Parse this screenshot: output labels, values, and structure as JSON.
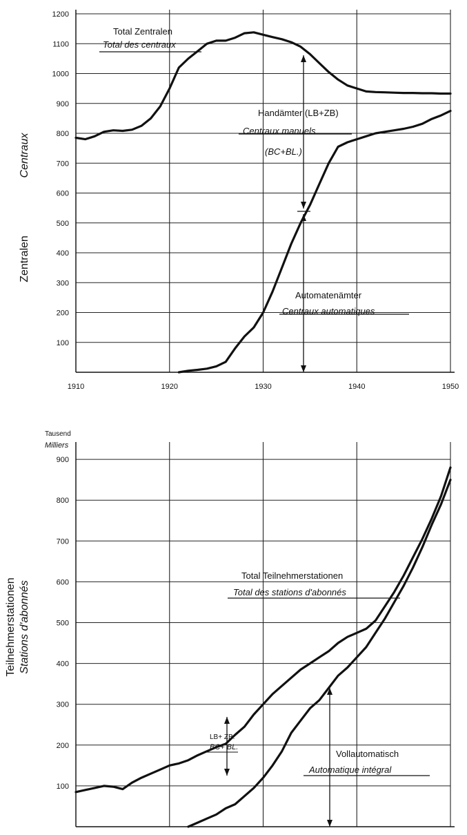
{
  "chart_data": [
    {
      "type": "line",
      "ylabel": "Zentralen",
      "ylabel_fr": "Centraux",
      "x_ticks": [
        "1910",
        "1920",
        "1930",
        "1940",
        "1950"
      ],
      "y_ticks": [
        "100",
        "200",
        "300",
        "400",
        "500",
        "600",
        "700",
        "800",
        "900",
        "1000",
        "1100",
        "1200"
      ],
      "xlim": [
        1910,
        1950
      ],
      "ylim": [
        0,
        1200
      ],
      "grid": true,
      "annotations": {
        "total_de": "Total Zentralen",
        "total_fr": "Total des centraux",
        "manual_de": "Handämter (LB+ZB)",
        "manual_fr1": "Centraux manuels",
        "manual_fr2": "(BC+BL.)",
        "auto_de": "Automatenämter",
        "auto_fr": "Centraux automatiques"
      },
      "series": [
        {
          "x": [
            1910,
            1911,
            1912,
            1913,
            1914,
            1915,
            1916,
            1917,
            1918,
            1919,
            1920,
            1921,
            1922,
            1923,
            1924,
            1925,
            1926,
            1927,
            1928,
            1929,
            1930,
            1931,
            1932,
            1933,
            1934,
            1935,
            1936,
            1937,
            1938,
            1939,
            1940,
            1941,
            1942,
            1943,
            1944,
            1945,
            1946,
            1947,
            1948,
            1949,
            1950
          ],
          "y": [
            785,
            780,
            790,
            805,
            810,
            808,
            812,
            825,
            850,
            890,
            950,
            1020,
            1050,
            1075,
            1100,
            1110,
            1110,
            1120,
            1135,
            1138,
            1130,
            1122,
            1115,
            1105,
            1090,
            1065,
            1035,
            1005,
            980,
            960,
            950,
            940,
            938,
            937,
            936,
            935,
            935,
            934,
            934,
            933,
            933
          ]
        },
        {
          "x": [
            1921,
            1922,
            1923,
            1924,
            1925,
            1926,
            1927,
            1928,
            1929,
            1930,
            1931,
            1932,
            1933,
            1934,
            1935,
            1936,
            1937,
            1938,
            1939,
            1940,
            1941,
            1942,
            1943,
            1944,
            1945,
            1946,
            1947,
            1948,
            1949,
            1950
          ],
          "y": [
            0,
            5,
            8,
            12,
            20,
            35,
            80,
            120,
            150,
            200,
            270,
            350,
            430,
            500,
            560,
            630,
            700,
            755,
            770,
            780,
            790,
            800,
            805,
            810,
            815,
            822,
            832,
            848,
            860,
            875
          ]
        }
      ]
    },
    {
      "type": "line",
      "ylabel": "Teilnehmerstationen",
      "ylabel_fr": "Stations d'abonnés",
      "unit_de": "Tausend",
      "unit_fr": "Milliers",
      "x_ticks": [
        "1910",
        "1920",
        "1930",
        "1940",
        "1950"
      ],
      "y_ticks": [
        "100",
        "200",
        "300",
        "400",
        "500",
        "600",
        "700",
        "800",
        "900"
      ],
      "xlim": [
        1910,
        1950
      ],
      "ylim": [
        0,
        1000
      ],
      "grid": true,
      "annotations": {
        "total_de": "Total Teilnehmerstationen",
        "total_fr": "Total des stations d'abonnés",
        "manual_de": "LB+ ZB.",
        "manual_fr": "BC+ BL.",
        "auto_de": "Vollautomatisch",
        "auto_fr": "Automatique intégral"
      },
      "series": [
        {
          "x": [
            1910,
            1911,
            1912,
            1913,
            1914,
            1915,
            1916,
            1917,
            1918,
            1919,
            1920,
            1921,
            1922,
            1923,
            1924,
            1925,
            1926,
            1927,
            1928,
            1929,
            1930,
            1931,
            1932,
            1933,
            1934,
            1935,
            1936,
            1937,
            1938,
            1939,
            1940,
            1941,
            1942,
            1943,
            1944,
            1945,
            1946,
            1947,
            1948,
            1949,
            1950
          ],
          "y": [
            85,
            90,
            95,
            100,
            98,
            92,
            108,
            120,
            130,
            140,
            150,
            155,
            163,
            175,
            185,
            195,
            203,
            225,
            245,
            275,
            300,
            325,
            345,
            365,
            385,
            400,
            415,
            430,
            450,
            465,
            475,
            485,
            505,
            540,
            575,
            615,
            660,
            705,
            755,
            810,
            880
          ]
        },
        {
          "x": [
            1922,
            1923,
            1924,
            1925,
            1926,
            1927,
            1928,
            1929,
            1930,
            1931,
            1932,
            1933,
            1934,
            1935,
            1936,
            1937,
            1938,
            1939,
            1940,
            1941,
            1942,
            1943,
            1944,
            1945,
            1946,
            1947,
            1948,
            1949,
            1950
          ],
          "y": [
            0,
            10,
            20,
            30,
            45,
            55,
            75,
            95,
            120,
            150,
            185,
            230,
            260,
            290,
            310,
            340,
            370,
            390,
            415,
            440,
            475,
            510,
            550,
            590,
            635,
            685,
            740,
            790,
            850
          ]
        }
      ]
    }
  ]
}
